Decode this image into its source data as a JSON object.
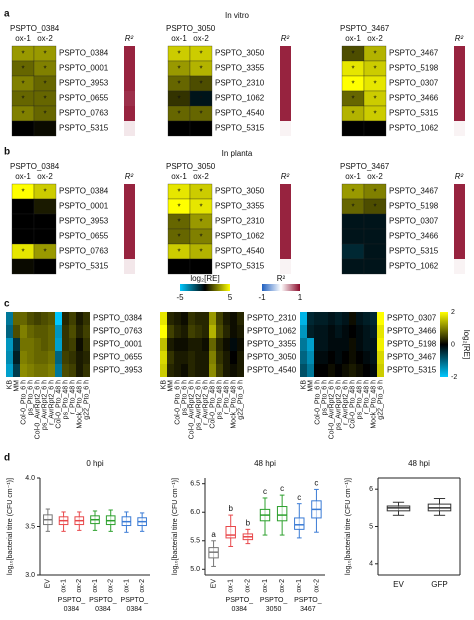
{
  "panels": {
    "a": {
      "label": "a",
      "title": "In vitro",
      "heatmaps": [
        {
          "title": "PSPTO_0384",
          "columns": [
            "ox-1",
            "ox-2"
          ],
          "r2_label": "R²",
          "rows": [
            "PSPTO_0384",
            "PSPTO_0001",
            "PSPTO_3953",
            "PSPTO_0655",
            "PSPTO_0763",
            "PSPTO_5315"
          ],
          "values": [
            [
              3,
              3
            ],
            [
              2,
              2.5
            ],
            [
              2.5,
              2
            ],
            [
              2,
              2
            ],
            [
              2.5,
              2
            ],
            [
              0,
              0.2
            ]
          ],
          "stars": [
            [
              "*",
              "*"
            ],
            [
              "*",
              "*"
            ],
            [
              "*",
              "*"
            ],
            [
              "*",
              "*"
            ],
            [
              "*",
              "*"
            ],
            [
              null,
              null
            ]
          ],
          "r2": [
            0.9,
            0.9,
            0.9,
            0.85,
            0.9,
            0.1
          ]
        },
        {
          "title": "PSPTO_3050",
          "columns": [
            "ox-1",
            "ox-2"
          ],
          "r2_label": "R²",
          "rows": [
            "PSPTO_3050",
            "PSPTO_3355",
            "PSPTO_2310",
            "PSPTO_1062",
            "PSPTO_4540",
            "PSPTO_5315"
          ],
          "values": [
            [
              4,
              4
            ],
            [
              3,
              3.5
            ],
            [
              2,
              1.5
            ],
            [
              1,
              -0.5
            ],
            [
              2,
              2
            ],
            [
              0,
              0
            ]
          ],
          "stars": [
            [
              "*",
              "*"
            ],
            [
              "*",
              "*"
            ],
            [
              "*",
              "*"
            ],
            [
              "*",
              "*"
            ],
            [
              "*",
              "*"
            ],
            [
              null,
              null
            ]
          ],
          "r2": [
            0.9,
            0.9,
            0.9,
            0.9,
            0.9,
            0.05
          ]
        },
        {
          "title": "PSPTO_3467",
          "columns": [
            "ox-1",
            "ox-2"
          ],
          "r2_label": "R²",
          "rows": [
            "PSPTO_3467",
            "PSPTO_5198",
            "PSPTO_0307",
            "PSPTO_3466",
            "PSPTO_5315",
            "PSPTO_1062"
          ],
          "values": [
            [
              1.5,
              3.5
            ],
            [
              4.5,
              4
            ],
            [
              5,
              4.5
            ],
            [
              2,
              4
            ],
            [
              3.5,
              4
            ],
            [
              0,
              0
            ]
          ],
          "stars": [
            [
              "*",
              "*"
            ],
            [
              "*",
              "*"
            ],
            [
              "*",
              "*"
            ],
            [
              "*",
              "*"
            ],
            [
              "*",
              "*"
            ],
            [
              null,
              null
            ]
          ],
          "r2": [
            0.9,
            0.9,
            0.9,
            0.9,
            0.9,
            0.05
          ]
        }
      ]
    },
    "b": {
      "label": "b",
      "title": "In planta",
      "heatmaps": [
        {
          "title": "PSPTO_0384",
          "columns": [
            "ox-1",
            "ox-2"
          ],
          "r2_label": "R²",
          "rows": [
            "PSPTO_0384",
            "PSPTO_0001",
            "PSPTO_3953",
            "PSPTO_0655",
            "PSPTO_0763",
            "PSPTO_5315"
          ],
          "values": [
            [
              5,
              4
            ],
            [
              0,
              0.5
            ],
            [
              0,
              0
            ],
            [
              0,
              0
            ],
            [
              4.5,
              3
            ],
            [
              0.2,
              0
            ]
          ],
          "stars": [
            [
              "*",
              "*"
            ],
            [
              null,
              null
            ],
            [
              null,
              null
            ],
            [
              null,
              null
            ],
            [
              "*",
              "*"
            ],
            [
              null,
              null
            ]
          ],
          "r2": [
            0.9,
            0.9,
            0.9,
            0.9,
            0.9,
            0.1
          ]
        },
        {
          "title": "PSPTO_3050",
          "columns": [
            "ox-1",
            "ox-2"
          ],
          "r2_label": "R²",
          "rows": [
            "PSPTO_3050",
            "PSPTO_3355",
            "PSPTO_2310",
            "PSPTO_1062",
            "PSPTO_4540",
            "PSPTO_5315"
          ],
          "values": [
            [
              4.5,
              4
            ],
            [
              5,
              4.5
            ],
            [
              2,
              3
            ],
            [
              2,
              2.5
            ],
            [
              4,
              3.5
            ],
            [
              0,
              0
            ]
          ],
          "stars": [
            [
              "*",
              "*"
            ],
            [
              "*",
              "*"
            ],
            [
              "*",
              "*"
            ],
            [
              "*",
              "*"
            ],
            [
              "*",
              "*"
            ],
            [
              null,
              null
            ]
          ],
          "r2": [
            0.9,
            0.9,
            0.9,
            0.9,
            0.9,
            0.05
          ]
        },
        {
          "title": "PSPTO_3467",
          "columns": [
            "ox-1",
            "ox-2"
          ],
          "r2_label": "R²",
          "rows": [
            "PSPTO_3467",
            "PSPTO_5198",
            "PSPTO_0307",
            "PSPTO_3466",
            "PSPTO_5315",
            "PSPTO_1062"
          ],
          "values": [
            [
              3,
              2.5
            ],
            [
              2,
              1.5
            ],
            [
              -0.5,
              -0.5
            ],
            [
              -0.5,
              -0.5
            ],
            [
              -1,
              -0.5
            ],
            [
              -0.5,
              -0.5
            ]
          ],
          "stars": [
            [
              "*",
              "*"
            ],
            [
              "*",
              "*"
            ],
            [
              null,
              null
            ],
            [
              null,
              null
            ],
            [
              null,
              null
            ],
            [
              null,
              null
            ]
          ],
          "r2": [
            0.9,
            0.9,
            0.9,
            0.9,
            0.9,
            0.05
          ]
        }
      ]
    },
    "legend": {
      "log2_label": "log₂[RE]",
      "log2_ticks": [
        -5,
        5
      ],
      "r2_label": "R²",
      "r2_ticks": [
        -1,
        1
      ]
    },
    "c": {
      "label": "c",
      "columns": [
        "KB",
        "MM",
        "Col-0_Pto_6 h",
        "ps_Pto_6 h",
        "Col-0_AvrRpt2_6 h",
        "ps_AvrRpt2_6 h",
        "r_AvrRpt2_6 h",
        "Col-0_Pto_48 h",
        "ps_Pto_48 h",
        "r_Pto_48 h",
        "Mock_Pto_48 h",
        "g22_Pto_6 h"
      ],
      "heatmaps": [
        {
          "rows": [
            "PSPTO_0384",
            "PSPTO_0763",
            "PSPTO_0001",
            "PSPTO_0655",
            "PSPTO_3953"
          ],
          "values": [
            [
              -1.2,
              0.8,
              0.8,
              0.6,
              0.5,
              0.6,
              0.7,
              -2,
              0.3,
              0.5,
              0.2,
              0.4
            ],
            [
              -1,
              0.6,
              1,
              0.8,
              0.7,
              0.7,
              0.8,
              -1.5,
              0.4,
              0.6,
              0.3,
              0.5
            ],
            [
              -1.5,
              -0.5,
              0.9,
              0.9,
              0.8,
              0.7,
              0.8,
              -1.6,
              0.4,
              0.5,
              0.1,
              0.4
            ],
            [
              -1.4,
              -0.3,
              1,
              0.9,
              0.8,
              0.8,
              0.9,
              -1,
              0.5,
              0.4,
              0.2,
              0.3
            ],
            [
              -1.6,
              -0.6,
              1.1,
              1,
              0.9,
              0.9,
              1,
              -1.2,
              0.6,
              0.5,
              0.2,
              0.4
            ]
          ]
        },
        {
          "rows": [
            "PSPTO_2310",
            "PSPTO_1062",
            "PSPTO_3355",
            "PSPTO_3050",
            "PSPTO_4540"
          ],
          "values": [
            [
              1.8,
              0.3,
              0.2,
              0.1,
              0.4,
              0.3,
              0.3,
              1.2,
              0.5,
              0.2,
              0.1,
              0.3
            ],
            [
              2,
              0.5,
              0.3,
              0.2,
              0.5,
              0.4,
              0.3,
              1.4,
              0.6,
              0.3,
              0.1,
              0.2
            ],
            [
              1.5,
              0.2,
              0.1,
              0.1,
              0.2,
              0.2,
              0.1,
              0.8,
              0.3,
              0.1,
              -0.1,
              0.1
            ],
            [
              1.7,
              0.4,
              0.2,
              0.2,
              0.3,
              0.2,
              0.2,
              1,
              0.4,
              0.2,
              0,
              0.2
            ],
            [
              1.6,
              0.3,
              0.2,
              0.1,
              0.3,
              0.2,
              0.2,
              1.1,
              0.5,
              0.2,
              0.1,
              0.2
            ]
          ]
        },
        {
          "rows": [
            "PSPTO_0307",
            "PSPTO_3466",
            "PSPTO_5198",
            "PSPTO_3467",
            "PSPTO_5315"
          ],
          "values": [
            [
              -1.8,
              -0.4,
              -0.3,
              -0.3,
              -0.2,
              -0.3,
              -0.2,
              0.1,
              -0.2,
              -0.3,
              -0.4,
              2
            ],
            [
              -1.5,
              -0.3,
              -0.2,
              -0.2,
              -0.1,
              -0.2,
              -0.1,
              0,
              -0.1,
              -0.2,
              -0.3,
              1.8
            ],
            [
              -1.2,
              -1.6,
              -0.2,
              -0.2,
              -0.1,
              -0.1,
              -0.1,
              0.1,
              -0.1,
              -0.2,
              -0.2,
              1.9
            ],
            [
              -1,
              -1.4,
              -0.1,
              -0.1,
              0,
              -0.1,
              0,
              0.1,
              0,
              -0.1,
              -0.2,
              1.7
            ],
            [
              -0.8,
              -1.2,
              0,
              0,
              0.1,
              0,
              0.1,
              0.2,
              0.1,
              0,
              -0.1,
              1.6
            ]
          ]
        }
      ],
      "colorbar": {
        "label": "log₂[RE]",
        "ticks": [
          2,
          0,
          -2
        ]
      }
    },
    "d": {
      "label": "d",
      "plots": [
        {
          "title": "0 hpi",
          "ylabel": "log₁₀[bacterial titre (CFU cm⁻¹)]",
          "ylim": [
            3.0,
            4.0
          ],
          "yticks": [
            {
              "value": 3,
              "label": "3.0"
            },
            {
              "value": 3.5,
              "label": "3.5"
            },
            {
              "value": 4,
              "label": "4.0"
            }
          ],
          "groups": [
            {
              "label": "EV",
              "color": "#777777",
              "box": [
                3.45,
                3.52,
                3.57,
                3.62,
                3.68
              ]
            },
            {
              "label": "ox-1",
              "color": "#e8474a",
              "box": [
                3.45,
                3.52,
                3.56,
                3.6,
                3.65
              ]
            },
            {
              "label": "ox-2",
              "color": "#e8474a",
              "box": [
                3.46,
                3.52,
                3.56,
                3.6,
                3.65
              ]
            },
            {
              "label": "ox-1",
              "color": "#2ca02c",
              "box": [
                3.46,
                3.53,
                3.57,
                3.61,
                3.66
              ]
            },
            {
              "label": "ox-2",
              "color": "#2ca02c",
              "box": [
                3.45,
                3.52,
                3.56,
                3.61,
                3.67
              ]
            },
            {
              "label": "ox-1",
              "color": "#3a7bd5",
              "box": [
                3.44,
                3.51,
                3.55,
                3.6,
                3.65
              ]
            },
            {
              "label": "ox-2",
              "color": "#3a7bd5",
              "box": [
                3.45,
                3.51,
                3.55,
                3.59,
                3.64
              ]
            }
          ],
          "group_labels": [
            [
              "PSPTO_",
              "0384"
            ],
            [
              "PSPTO_",
              "0384"
            ],
            [
              "PSPTO_",
              "0384"
            ]
          ]
        },
        {
          "title": "48 hpi",
          "ylabel": "log₁₀[bacterial titre (CFU cm⁻¹)]",
          "ylim": [
            4.9,
            6.6
          ],
          "yticks": [
            {
              "value": 5,
              "label": "5.0"
            },
            {
              "value": 5.5,
              "label": "5.5"
            },
            {
              "value": 6,
              "label": "6.0"
            },
            {
              "value": 6.5,
              "label": "6.5"
            }
          ],
          "groups": [
            {
              "label": "EV",
              "color": "#777777",
              "box": [
                5.05,
                5.2,
                5.3,
                5.38,
                5.5
              ],
              "letter": "a"
            },
            {
              "label": "ox-1",
              "color": "#e8474a",
              "box": [
                5.4,
                5.55,
                5.6,
                5.75,
                5.95
              ],
              "letter": "b"
            },
            {
              "label": "ox-2",
              "color": "#e8474a",
              "box": [
                5.45,
                5.52,
                5.57,
                5.62,
                5.7
              ],
              "letter": "b"
            },
            {
              "label": "ox-1",
              "color": "#2ca02c",
              "box": [
                5.6,
                5.85,
                5.95,
                6.05,
                6.25
              ],
              "letter": "c"
            },
            {
              "label": "ox-2",
              "color": "#2ca02c",
              "box": [
                5.6,
                5.85,
                5.95,
                6.1,
                6.3
              ],
              "letter": "c"
            },
            {
              "label": "ox-1",
              "color": "#3a7bd5",
              "box": [
                5.55,
                5.7,
                5.78,
                5.9,
                6.15
              ],
              "letter": "c"
            },
            {
              "label": "ox-2",
              "color": "#3a7bd5",
              "box": [
                5.65,
                5.9,
                6.05,
                6.2,
                6.4
              ],
              "letter": "c"
            }
          ],
          "group_labels": [
            [
              "PSPTO_",
              "0384"
            ],
            [
              "PSPTO_",
              "3050"
            ],
            [
              "PSPTO_",
              "3467"
            ]
          ]
        },
        {
          "title": "48 hpi",
          "ylabel": "log₁₀[bacterial titre (CFU cm⁻¹)]",
          "ylim": [
            3.7,
            6.3
          ],
          "yticks": [
            4,
            5,
            6
          ],
          "groups": [
            {
              "label": "EV",
              "color": "#333333",
              "box": [
                5.3,
                5.42,
                5.5,
                5.55,
                5.65
              ]
            },
            {
              "label": "GFP",
              "color": "#333333",
              "box": [
                5.3,
                5.42,
                5.5,
                5.6,
                5.75
              ]
            }
          ]
        }
      ]
    }
  }
}
